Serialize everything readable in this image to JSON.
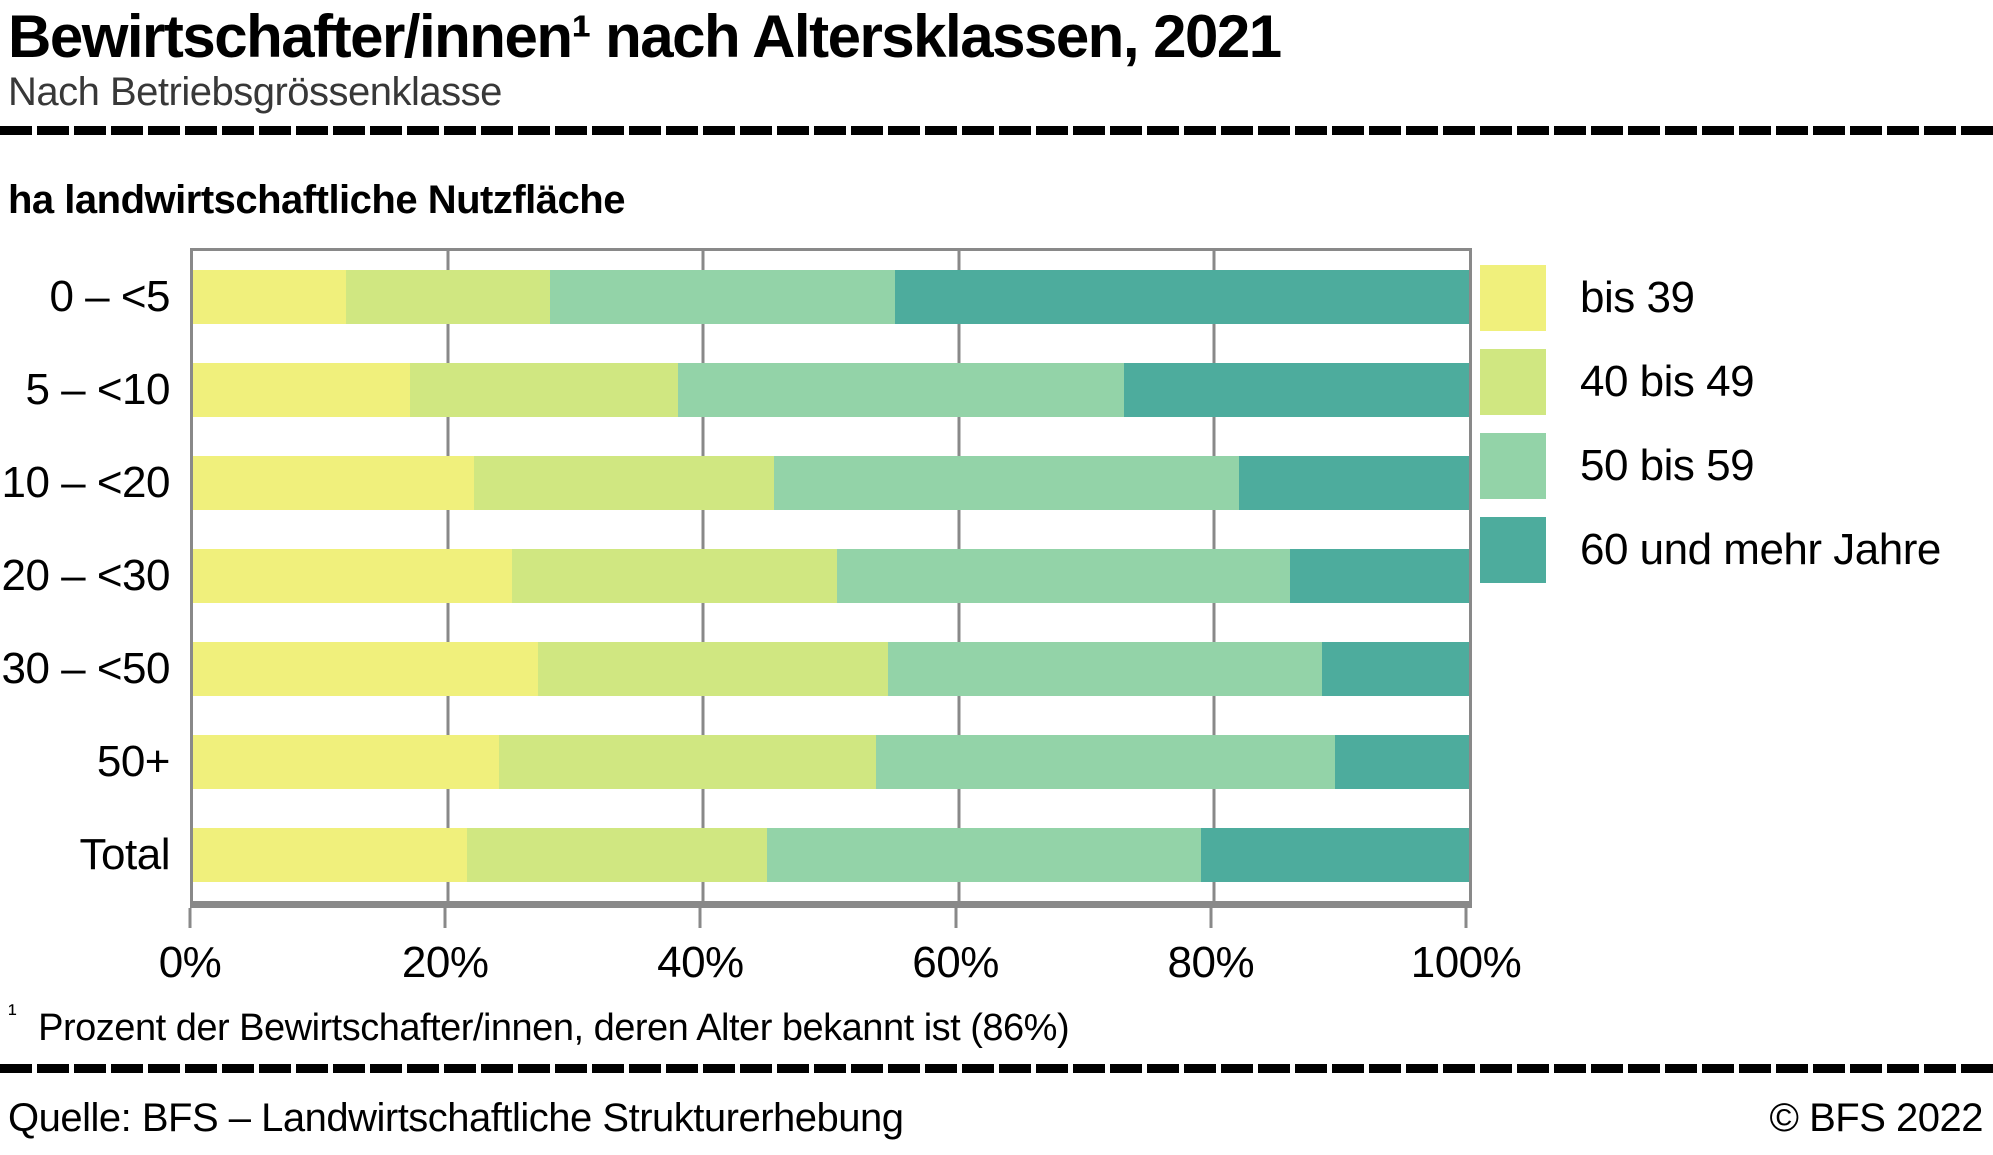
{
  "header": {
    "title": "Bewirtschafter/innen¹ nach Altersklassen, 2021",
    "subtitle": "Nach Betriebsgrössenklasse"
  },
  "chart_data": {
    "type": "bar",
    "orientation": "horizontal",
    "stacked": true,
    "unit": "percent",
    "title": "Bewirtschafter/innen nach Altersklassen, 2021",
    "subtitle": "Nach Betriebsgrössenklasse",
    "ylabel": "ha landwirtschaftliche Nutzfläche",
    "xlabel": "",
    "xlim": [
      0,
      100
    ],
    "x_ticks": [
      0,
      20,
      40,
      60,
      80,
      100
    ],
    "x_tick_labels": [
      "0%",
      "20%",
      "40%",
      "60%",
      "80%",
      "100%"
    ],
    "grid": true,
    "legend_position": "right",
    "categories": [
      "0 – <5",
      "5 – <10",
      "10 – <20",
      "20 – <30",
      "30 – <50",
      "50+",
      "Total"
    ],
    "series": [
      {
        "name": "bis 39",
        "color": "#f0f07c",
        "values": [
          12,
          17,
          22,
          25,
          27,
          24,
          21.5
        ]
      },
      {
        "name": "40 bis 49",
        "color": "#d0e781",
        "values": [
          16,
          21,
          23.5,
          25.5,
          27.5,
          29.5,
          23.5
        ]
      },
      {
        "name": "50 bis 59",
        "color": "#93d3a8",
        "values": [
          27,
          35,
          36.5,
          35.5,
          34,
          36,
          34
        ]
      },
      {
        "name": "60 und mehr Jahre",
        "color": "#4dac9d",
        "values": [
          45,
          27,
          18,
          14,
          11.5,
          10.5,
          21
        ]
      }
    ]
  },
  "footnote": {
    "marker": "¹",
    "text": "Prozent der Bewirtschafter/innen, deren Alter bekannt ist (86%)"
  },
  "footer": {
    "source": "Quelle: BFS – Landwirtschaftliche Strukturerhebung",
    "copyright": "© BFS 2022"
  }
}
